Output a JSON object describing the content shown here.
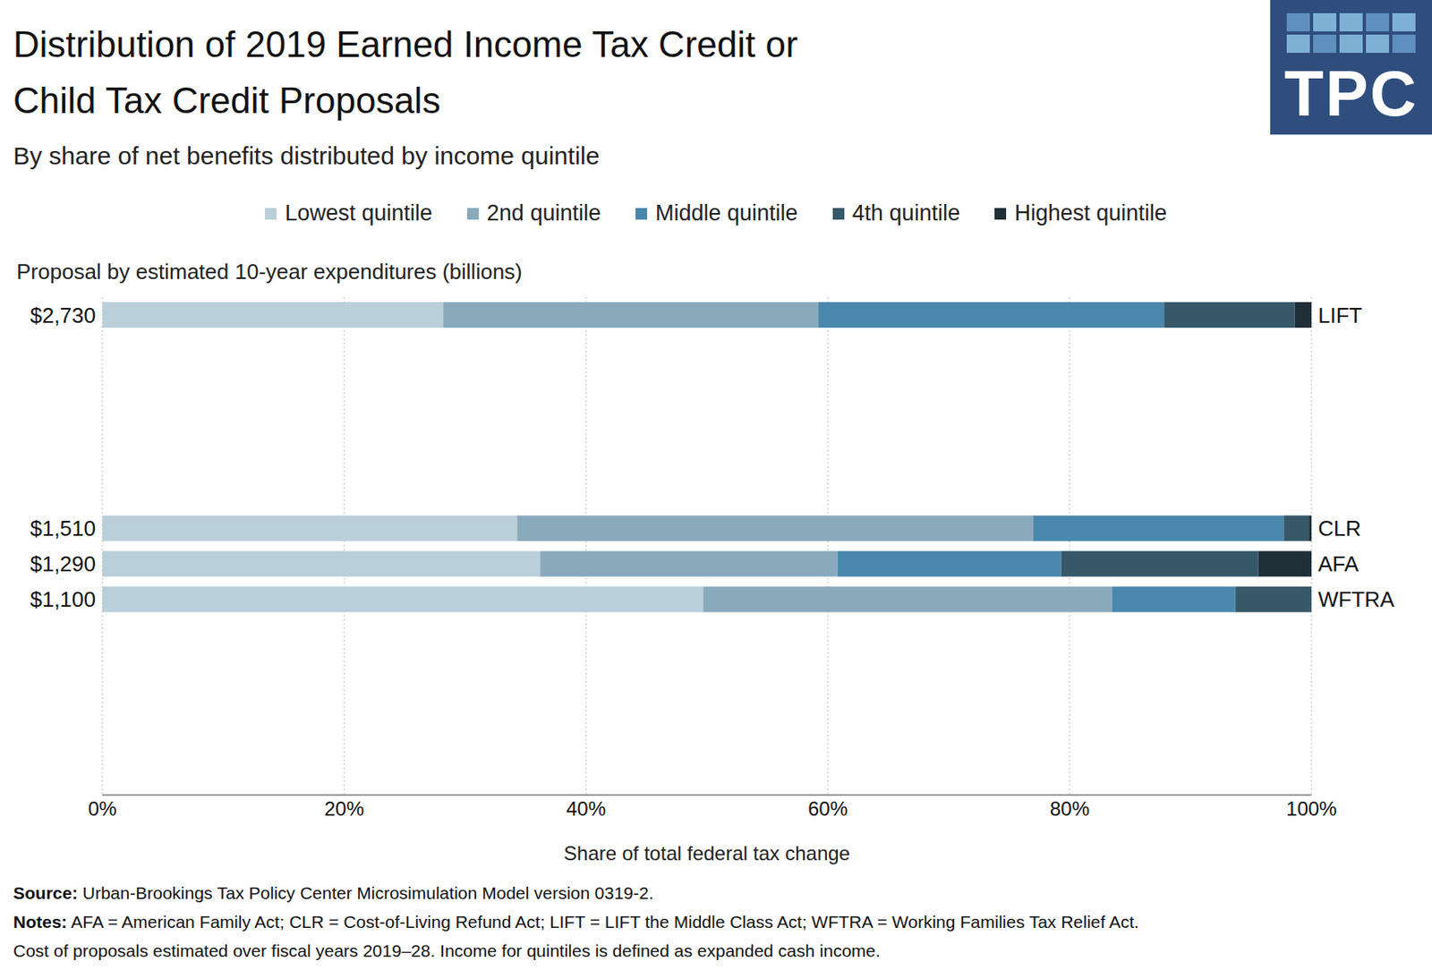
{
  "chart_data": {
    "type": "bar",
    "orientation": "horizontal",
    "stacked": true,
    "grid": true,
    "title": "Distribution of 2019 Earned Income Tax Credit or\nChild Tax Credit Proposals",
    "subtitle": "By share of net benefits distributed by income quintile",
    "y_label": "Proposal by estimated 10-year expenditures (billions)",
    "x_label": "Share of total federal tax change",
    "categories": [
      "LIFT",
      null,
      null,
      null,
      null,
      null,
      "CLR",
      "AFA",
      "WFTRA",
      null,
      null,
      null,
      null,
      null
    ],
    "expenditure_labels": [
      "$2,730",
      null,
      null,
      null,
      null,
      null,
      "$1,510",
      "$1,290",
      "$1,100",
      null,
      null,
      null,
      null,
      null
    ],
    "xlim": [
      0,
      100
    ],
    "xticks": [
      {
        "value": 0,
        "label": "0%"
      },
      {
        "value": 20,
        "label": "20%"
      },
      {
        "value": 40,
        "label": "40%"
      },
      {
        "value": 60,
        "label": "60%"
      },
      {
        "value": 80,
        "label": "80%"
      },
      {
        "value": 100,
        "label": "100%"
      }
    ],
    "series": [
      {
        "name": "Lowest quintile",
        "color": "#b9cfd9",
        "values": [
          28.2,
          null,
          null,
          null,
          null,
          null,
          34.3,
          36.2,
          49.7,
          null,
          null,
          null,
          null,
          null
        ]
      },
      {
        "name": "2nd quintile",
        "color": "#89aabb",
        "values": [
          31.0,
          null,
          null,
          null,
          null,
          null,
          42.7,
          24.6,
          33.8,
          null,
          null,
          null,
          null,
          null
        ]
      },
      {
        "name": "Middle quintile",
        "color": "#4a87ad",
        "values": [
          28.6,
          null,
          null,
          null,
          null,
          null,
          20.7,
          18.5,
          10.2,
          null,
          null,
          null,
          null,
          null
        ]
      },
      {
        "name": "4th quintile",
        "color": "#365869",
        "values": [
          10.8,
          null,
          null,
          null,
          null,
          null,
          2.1,
          16.3,
          6.3,
          null,
          null,
          null,
          null,
          null
        ]
      },
      {
        "name": "Highest quintile",
        "color": "#1e2f38",
        "values": [
          1.4,
          null,
          null,
          null,
          null,
          null,
          0.2,
          4.4,
          0,
          null,
          null,
          null,
          null,
          null
        ]
      }
    ],
    "logo": "TPC",
    "source_label": "Source:",
    "source": "Urban-Brookings Tax Policy Center Microsimulation Model version 0319-2.",
    "notes_label": "Notes:",
    "notes": [
      "AFA = American Family Act; CLR = Cost-of-Living Refund Act; LIFT = LIFT the Middle Class Act; WFTRA = Working Families Tax Relief Act.",
      "Cost of proposals estimated over fiscal years 2019–28. Income for quintiles is defined as expanded cash income."
    ]
  }
}
